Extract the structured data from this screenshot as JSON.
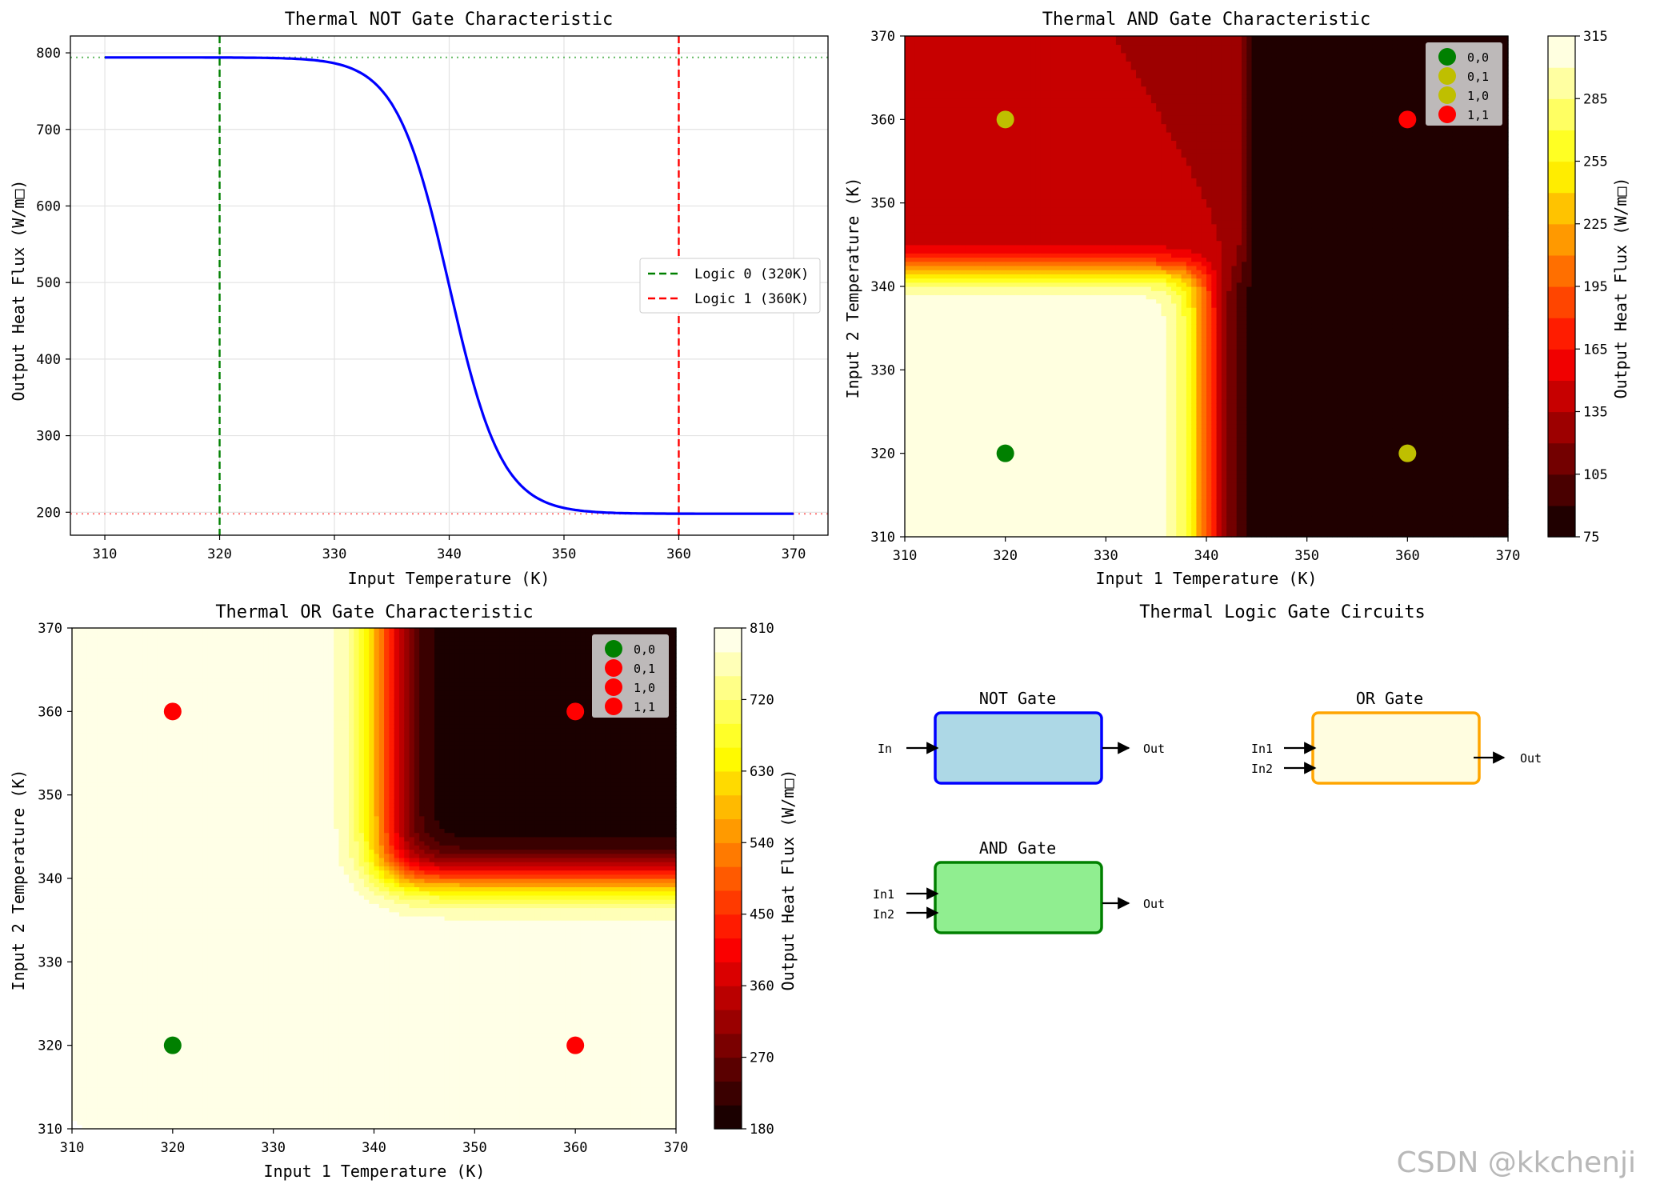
{
  "chart_data": [
    {
      "type": "line",
      "title": "Thermal NOT Gate Characteristic",
      "xlabel": "Input Temperature (K)",
      "ylabel": "Output Heat Flux (W/m□)",
      "xlim": [
        307,
        373
      ],
      "ylim": [
        170,
        822
      ],
      "xticks": [
        310,
        320,
        330,
        340,
        350,
        360,
        370
      ],
      "yticks": [
        200,
        300,
        400,
        500,
        600,
        700,
        800
      ],
      "grid": true,
      "legend_position": "center-right",
      "series": [
        {
          "name": "",
          "color": "#0000ff",
          "style": "solid",
          "x": [
            310,
            315,
            320,
            322,
            324,
            326,
            328,
            330,
            332,
            334,
            335,
            336,
            337,
            338,
            339,
            340,
            341,
            342,
            343,
            344,
            345,
            346,
            348,
            350,
            352,
            354,
            356,
            360,
            365,
            370
          ],
          "y": [
            794,
            794,
            793,
            792,
            791,
            788,
            781,
            768,
            745,
            705,
            678,
            645,
            607,
            564,
            518,
            497,
            470,
            420,
            377,
            339,
            307,
            282,
            247,
            226,
            213,
            206,
            202,
            199,
            198,
            198
          ]
        }
      ],
      "vlines": [
        {
          "x": 320,
          "color": "#008000",
          "style": "dashed",
          "label": "Logic 0 (320K)"
        },
        {
          "x": 360,
          "color": "#ff0000",
          "style": "dashed",
          "label": "Logic 1 (360K)"
        }
      ],
      "hlines": [
        {
          "y": 794,
          "color": "#66bb66",
          "style": "dotted"
        },
        {
          "y": 198,
          "color": "#ff7777",
          "style": "dotted"
        }
      ]
    },
    {
      "type": "heatmap",
      "title": "Thermal AND Gate Characteristic",
      "xlabel": "Input 1 Temperature (K)",
      "ylabel": "Input 2 Temperature (K)",
      "xlim": [
        310,
        370
      ],
      "ylim": [
        310,
        370
      ],
      "xticks": [
        310,
        320,
        330,
        340,
        350,
        360,
        370
      ],
      "yticks": [
        310,
        320,
        330,
        340,
        350,
        360,
        370
      ],
      "colormap": "hot",
      "colorbar_label": "Output Heat Flux (W/m□)",
      "colorbar_range": [
        75,
        315
      ],
      "colorbar_ticks": [
        75,
        105,
        135,
        165,
        195,
        225,
        255,
        285,
        315
      ],
      "legend_position": "top-right",
      "points": [
        {
          "x": 320,
          "y": 320,
          "label": "0,0",
          "color": "#008000"
        },
        {
          "x": 320,
          "y": 360,
          "label": "0,1",
          "color": "#bfbf00"
        },
        {
          "x": 360,
          "y": 320,
          "label": "1,0",
          "color": "#bfbf00"
        },
        {
          "x": 360,
          "y": 360,
          "label": "1,1",
          "color": "#ff0000"
        }
      ]
    },
    {
      "type": "heatmap",
      "title": "Thermal OR Gate Characteristic",
      "xlabel": "Input 1 Temperature (K)",
      "ylabel": "Input 2 Temperature (K)",
      "xlim": [
        310,
        370
      ],
      "ylim": [
        310,
        370
      ],
      "xticks": [
        310,
        320,
        330,
        340,
        350,
        360,
        370
      ],
      "yticks": [
        310,
        320,
        330,
        340,
        350,
        360,
        370
      ],
      "colormap": "hot",
      "colorbar_label": "Output Heat Flux (W/m□)",
      "colorbar_range": [
        180,
        810
      ],
      "colorbar_ticks": [
        180,
        270,
        360,
        450,
        540,
        630,
        720,
        810
      ],
      "legend_position": "top-right",
      "points": [
        {
          "x": 320,
          "y": 320,
          "label": "0,0",
          "color": "#008000"
        },
        {
          "x": 320,
          "y": 360,
          "label": "0,1",
          "color": "#ff0000"
        },
        {
          "x": 360,
          "y": 320,
          "label": "1,0",
          "color": "#ff0000"
        },
        {
          "x": 360,
          "y": 360,
          "label": "1,1",
          "color": "#ff0000"
        }
      ]
    }
  ],
  "circuits": {
    "title": "Thermal Logic Gate Circuits",
    "gates": [
      {
        "name": "NOT Gate",
        "fill": "#add8e6",
        "stroke": "#0000ff",
        "inputs": [
          "In"
        ],
        "output": "Out"
      },
      {
        "name": "OR Gate",
        "fill": "#fffde0",
        "stroke": "#ffa500",
        "inputs": [
          "In1",
          "In2"
        ],
        "output": "Out"
      },
      {
        "name": "AND Gate",
        "fill": "#90ee90",
        "stroke": "#008000",
        "inputs": [
          "In1",
          "In2"
        ],
        "output": "Out"
      }
    ]
  },
  "watermark": "CSDN @kkchenji"
}
